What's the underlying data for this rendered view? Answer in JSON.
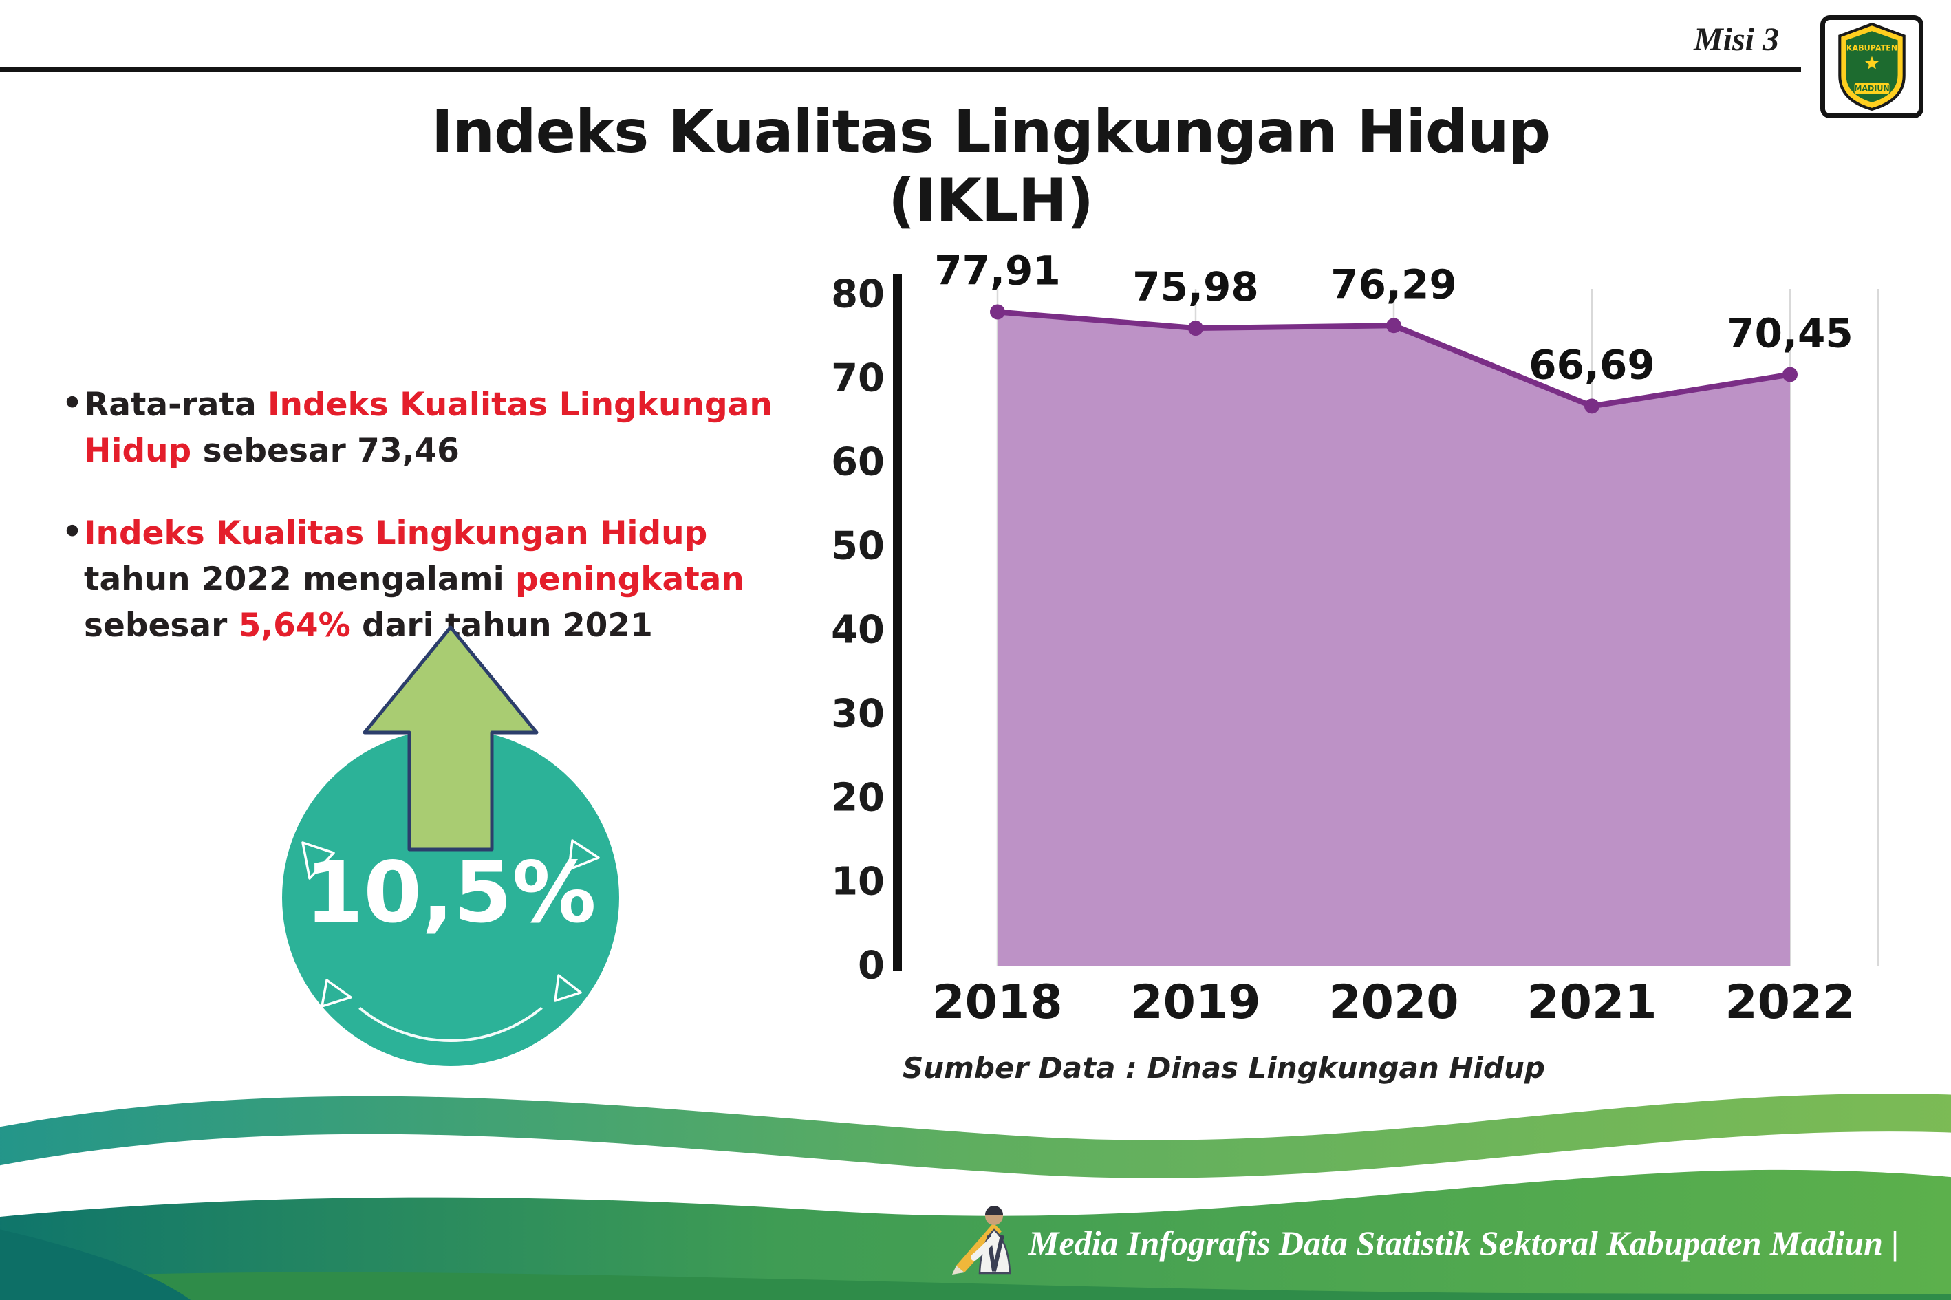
{
  "header": {
    "misi_label": "Misi 3",
    "logo": {
      "region_top": "KABUPATEN",
      "region_bottom": "MADIUN"
    }
  },
  "title": "Indeks Kualitas Lingkungan Hidup (IKLH)",
  "bullets": {
    "b1": {
      "pre": "Rata-rata ",
      "highlight": "Indeks Kualitas Lingkungan Hidup",
      "post": " sebesar 73,46"
    },
    "b2": {
      "h1": "Indeks Kualitas Lingkungan Hidup",
      "t1": " tahun 2022 mengalami ",
      "h2": "peningkatan",
      "t2": " sebesar ",
      "h3": "5,64%",
      "t3": " dari tahun 2021"
    }
  },
  "badge": {
    "value": "10,5%"
  },
  "chart_data": {
    "type": "area",
    "categories": [
      "2018",
      "2019",
      "2020",
      "2021",
      "2022"
    ],
    "values": [
      77.91,
      75.98,
      76.29,
      66.69,
      70.45
    ],
    "point_labels": [
      "77,91",
      "75,98",
      "76,29",
      "66,69",
      "70,45"
    ],
    "ylim": [
      0,
      80
    ],
    "yticks": [
      0,
      10,
      20,
      30,
      40,
      50,
      60,
      70,
      80
    ],
    "grid": "vertical",
    "legend": "none",
    "area_fill": "#bd92c6",
    "line_color": "#7a2e86",
    "source_note": "Sumber Data : Dinas Lingkungan Hidup"
  },
  "footer": {
    "credit": "Media Infografis Data Statistik Sektoral Kabupaten Madiun |"
  },
  "colors": {
    "accent_red": "#e41e2b",
    "badge_teal": "#2cb298",
    "arrow_green": "#a9cc72"
  }
}
